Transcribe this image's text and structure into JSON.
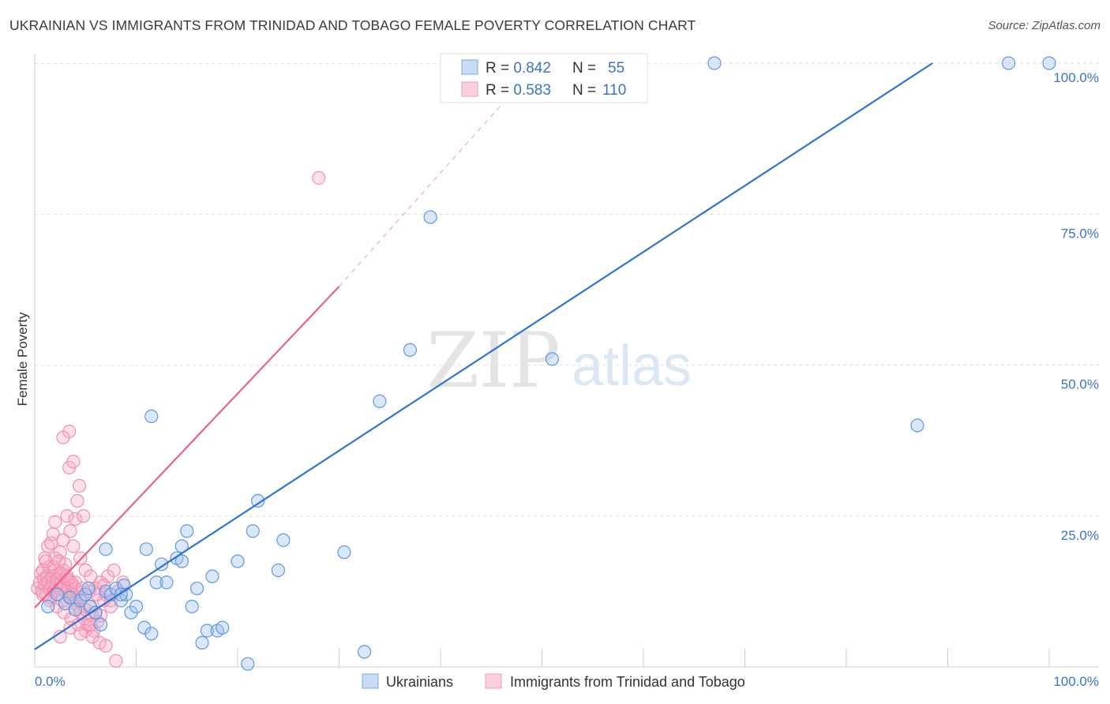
{
  "title": "UKRAINIAN VS IMMIGRANTS FROM TRINIDAD AND TOBAGO FEMALE POVERTY CORRELATION CHART",
  "source": "Source: ZipAtlas.com",
  "watermark": {
    "part1": "ZIP",
    "part2": "atlas"
  },
  "chart_data": {
    "type": "scatter",
    "xlabel": "",
    "ylabel": "Female Poverty",
    "xlim": [
      0,
      100
    ],
    "ylim": [
      0,
      100
    ],
    "x_tick_labels": [
      "0.0%",
      "100.0%"
    ],
    "y_tick_values": [
      25,
      50,
      75,
      100
    ],
    "y_tick_labels": [
      "25.0%",
      "50.0%",
      "75.0%",
      "100.0%"
    ],
    "grid": true,
    "legend_position": "top-center",
    "colors": {
      "blue": "#6fa8e8",
      "blue_line": "#2f74d0",
      "pink": "#f08fb0",
      "pink_line": "#e8628e",
      "tick": "#3a74c9"
    },
    "stats": [
      {
        "r_label": "R = ",
        "r_value": "0.842",
        "n_label": "N = ",
        "n_value": "55"
      },
      {
        "r_label": "R = ",
        "r_value": "0.583",
        "n_label": "N = ",
        "n_value": "110"
      }
    ],
    "series": [
      {
        "name": "Ukrainians",
        "trend": {
          "x0": 0,
          "y0": 2.9,
          "x1": 88.5,
          "y1": 100
        },
        "points": [
          [
            1.3,
            10
          ],
          [
            2.2,
            12
          ],
          [
            3,
            10.5
          ],
          [
            3.5,
            11.5
          ],
          [
            4,
            9.5
          ],
          [
            4.5,
            11
          ],
          [
            5,
            12
          ],
          [
            5.3,
            13
          ],
          [
            5.5,
            10
          ],
          [
            6,
            9
          ],
          [
            6.5,
            7
          ],
          [
            7,
            12.5
          ],
          [
            7.5,
            12
          ],
          [
            8,
            13
          ],
          [
            8.5,
            11
          ],
          [
            8.8,
            13.5
          ],
          [
            9,
            12
          ],
          [
            9.5,
            9
          ],
          [
            10,
            10
          ],
          [
            10.8,
            6.5
          ],
          [
            11.5,
            5.5
          ],
          [
            11,
            19.5
          ],
          [
            12,
            14
          ],
          [
            12.5,
            17
          ],
          [
            13,
            14
          ],
          [
            14,
            18
          ],
          [
            14.5,
            20
          ],
          [
            15,
            22.5
          ],
          [
            15.5,
            10
          ],
          [
            16,
            13
          ],
          [
            7,
            19.5
          ],
          [
            17,
            6
          ],
          [
            18,
            6
          ],
          [
            18.5,
            6.5
          ],
          [
            17.5,
            15
          ],
          [
            20,
            17.5
          ],
          [
            21,
            0.5
          ],
          [
            22,
            27.5
          ],
          [
            21.5,
            22.5
          ],
          [
            24,
            16
          ],
          [
            24.5,
            21
          ],
          [
            14.5,
            17.5
          ],
          [
            16.5,
            4
          ],
          [
            30.5,
            19
          ],
          [
            32.5,
            2.5
          ],
          [
            34,
            44
          ],
          [
            37,
            52.5
          ],
          [
            39,
            74.5
          ],
          [
            51,
            51
          ],
          [
            67,
            100
          ],
          [
            87,
            40
          ],
          [
            96,
            100
          ],
          [
            100,
            100
          ],
          [
            11.5,
            41.5
          ],
          [
            8.5,
            12
          ]
        ]
      },
      {
        "name": "Immigrants from Trinidad and Tobago",
        "trend": {
          "x0": 0,
          "y0": 9.8,
          "x1": 30,
          "y1": 63,
          "x2": 47,
          "y2": 95
        },
        "points": [
          [
            0.3,
            13
          ],
          [
            0.5,
            14
          ],
          [
            0.6,
            15.5
          ],
          [
            0.7,
            12.5
          ],
          [
            0.8,
            16
          ],
          [
            0.9,
            14.5
          ],
          [
            1,
            13.5
          ],
          [
            1.1,
            12
          ],
          [
            1.2,
            15
          ],
          [
            1.3,
            14
          ],
          [
            1.4,
            16.5
          ],
          [
            1.5,
            13
          ],
          [
            1.6,
            11.5
          ],
          [
            1.7,
            15
          ],
          [
            1.8,
            14
          ],
          [
            1.9,
            12.5
          ],
          [
            2,
            16
          ],
          [
            2.1,
            13.5
          ],
          [
            2.2,
            14.5
          ],
          [
            2.3,
            12
          ],
          [
            2.4,
            15.5
          ],
          [
            2.5,
            13
          ],
          [
            2.6,
            14
          ],
          [
            2.7,
            11
          ],
          [
            2.8,
            16
          ],
          [
            2.9,
            13.5
          ],
          [
            3,
            12.5
          ],
          [
            3.1,
            14.5
          ],
          [
            3.2,
            15
          ],
          [
            3.3,
            13
          ],
          [
            3.4,
            11.5
          ],
          [
            3.5,
            12
          ],
          [
            3.6,
            14
          ],
          [
            3.7,
            13.5
          ],
          [
            3.8,
            12
          ],
          [
            3.9,
            10.5
          ],
          [
            4,
            13
          ],
          [
            4.1,
            11
          ],
          [
            4.2,
            12.5
          ],
          [
            4.3,
            10
          ],
          [
            4.5,
            9
          ],
          [
            4.7,
            11.5
          ],
          [
            4.9,
            8
          ],
          [
            5,
            9.5
          ],
          [
            5.2,
            7
          ],
          [
            5.4,
            10
          ],
          [
            5.6,
            8.5
          ],
          [
            5.8,
            6
          ],
          [
            6,
            9
          ],
          [
            6.2,
            7.5
          ],
          [
            1,
            18
          ],
          [
            1.3,
            20
          ],
          [
            1.8,
            22
          ],
          [
            2,
            24
          ],
          [
            2.5,
            19
          ],
          [
            2.8,
            21
          ],
          [
            3,
            17
          ],
          [
            3.2,
            25
          ],
          [
            3.5,
            22.5
          ],
          [
            3.8,
            20
          ],
          [
            4,
            24.5
          ],
          [
            4.2,
            27.5
          ],
          [
            4.5,
            18
          ],
          [
            4.8,
            25
          ],
          [
            5,
            16
          ],
          [
            5.5,
            15
          ],
          [
            6,
            13
          ],
          [
            6.5,
            14
          ],
          [
            7,
            12
          ],
          [
            7.5,
            10
          ],
          [
            7.2,
            15
          ],
          [
            6.8,
            11
          ],
          [
            3.4,
            39
          ],
          [
            3.4,
            33
          ],
          [
            3.8,
            34
          ],
          [
            4.4,
            30
          ],
          [
            2.8,
            38
          ],
          [
            2,
            18
          ],
          [
            1.6,
            20.5
          ],
          [
            2.4,
            17.5
          ],
          [
            0.8,
            12
          ],
          [
            1.5,
            11
          ],
          [
            2.2,
            10
          ],
          [
            2.9,
            9
          ],
          [
            3.6,
            8
          ],
          [
            4.3,
            7
          ],
          [
            5,
            6
          ],
          [
            5.7,
            5
          ],
          [
            6.4,
            4
          ],
          [
            7,
            3.5
          ],
          [
            8,
            1
          ],
          [
            2.5,
            5
          ],
          [
            3.5,
            6.5
          ],
          [
            4.5,
            5.5
          ],
          [
            5.5,
            7
          ],
          [
            6.5,
            8.5
          ],
          [
            7.5,
            11
          ],
          [
            8.2,
            12.5
          ],
          [
            8.7,
            14
          ],
          [
            7.8,
            16
          ],
          [
            28,
            81
          ],
          [
            1.1,
            17.5
          ],
          [
            1.9,
            16.5
          ],
          [
            2.6,
            15.5
          ],
          [
            3.3,
            14.5
          ],
          [
            4,
            14
          ],
          [
            4.7,
            13
          ],
          [
            5.4,
            12.5
          ],
          [
            6.1,
            12
          ],
          [
            6.8,
            13.5
          ]
        ]
      }
    ]
  }
}
